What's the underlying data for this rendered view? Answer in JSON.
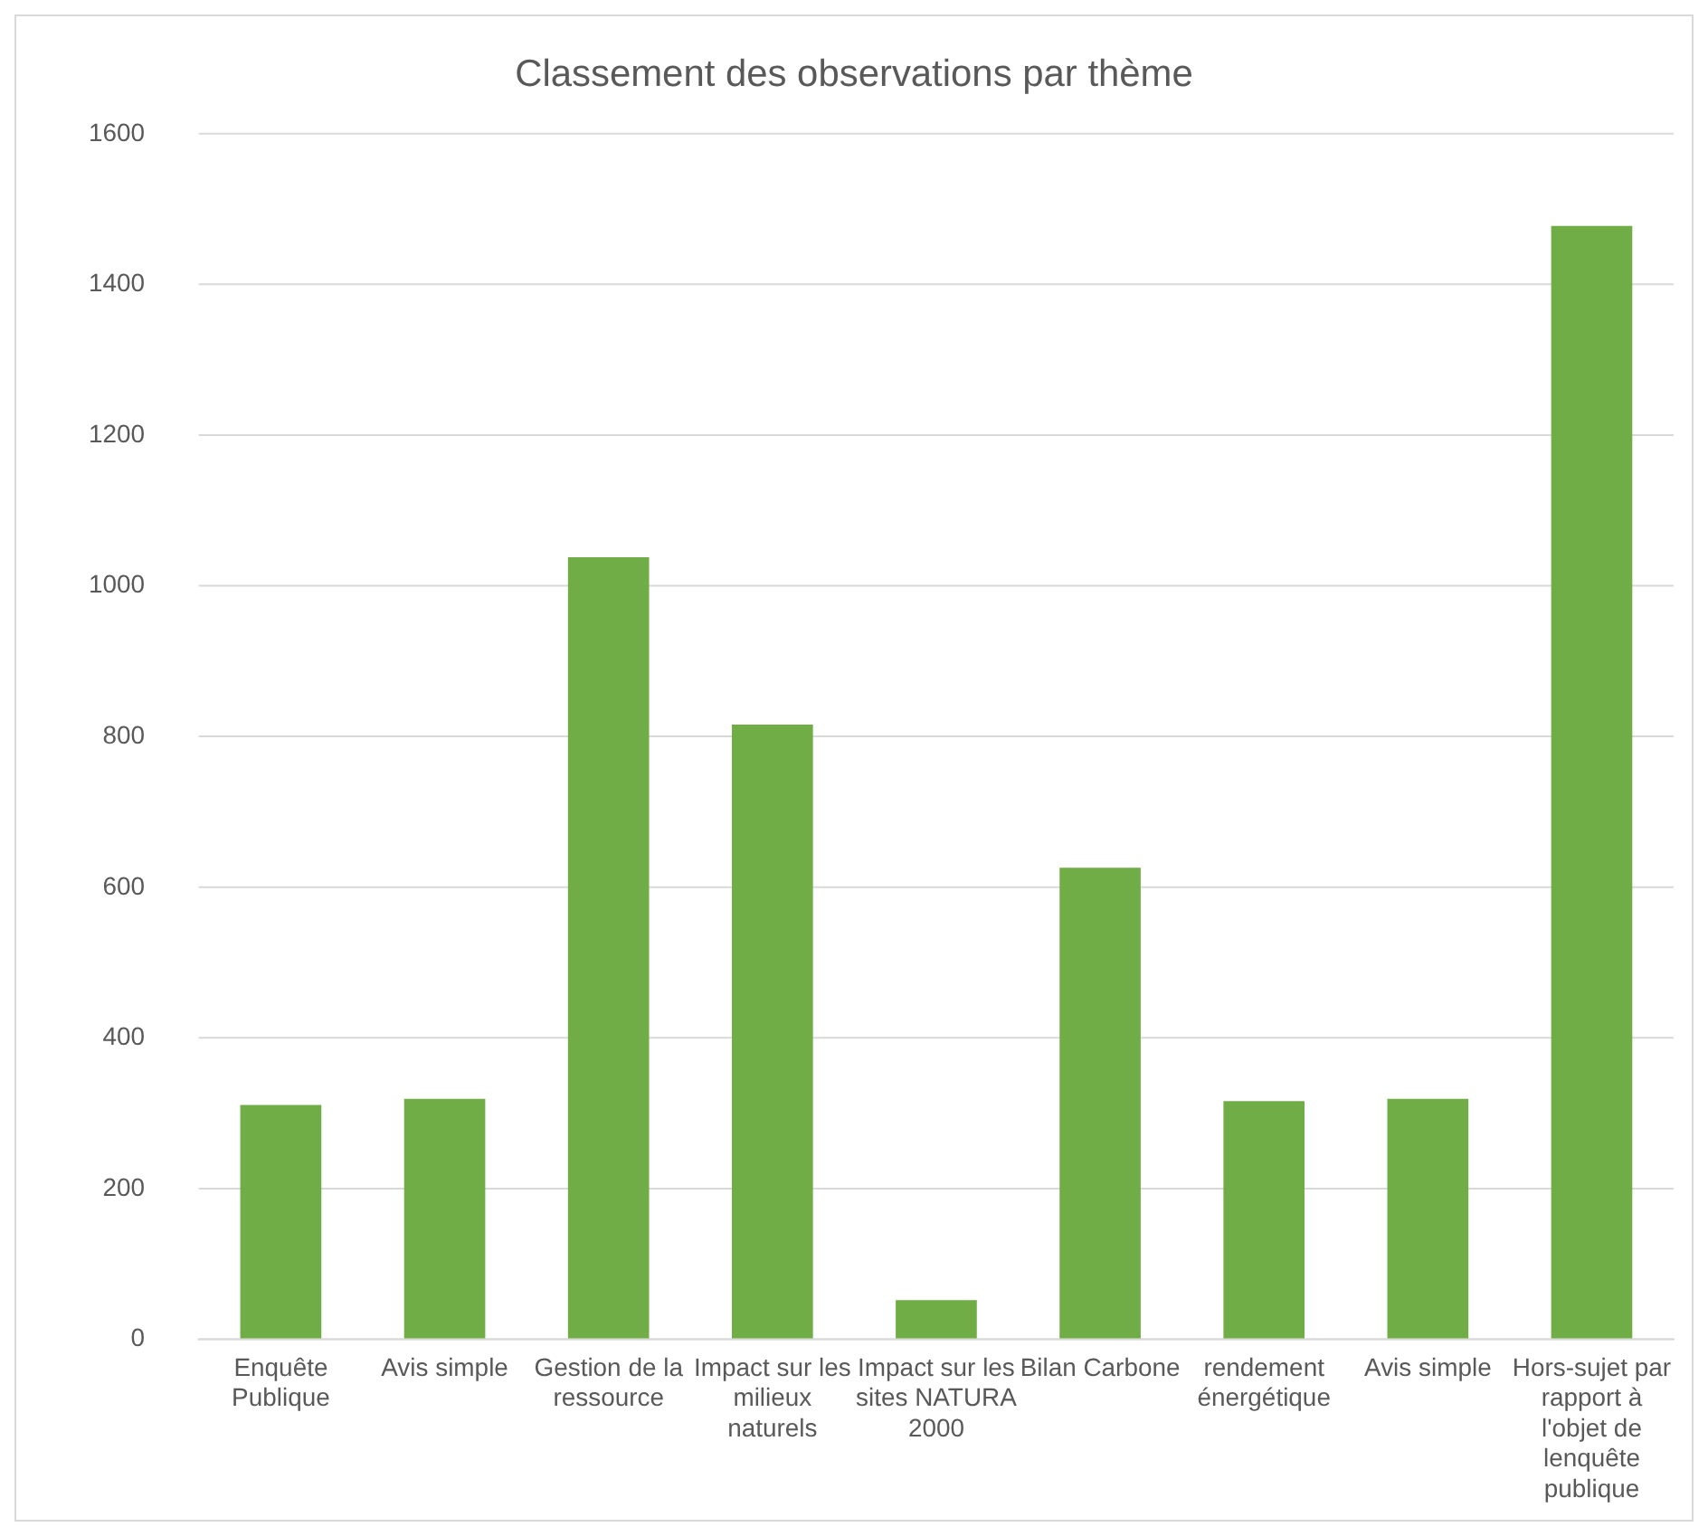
{
  "chart_data": {
    "type": "bar",
    "title": "Classement des observations par thème",
    "categories": [
      "Enquête Publique",
      "Avis simple",
      "Gestion de la ressource",
      "Impact sur les milieux naturels",
      "Impact sur les sites NATURA 2000",
      "Bilan Carbone",
      "rendement énergétique",
      "Avis simple",
      "Hors-sujet par rapport à l'objet de lenquête publique"
    ],
    "values": [
      311,
      319,
      1038,
      816,
      52,
      626,
      316,
      319,
      1478
    ],
    "color": "#70ad47",
    "ylim": [
      0,
      1600
    ],
    "yticks": [
      0,
      200,
      400,
      600,
      800,
      1000,
      1200,
      1400,
      1600
    ],
    "grid": "y",
    "legend": false
  }
}
